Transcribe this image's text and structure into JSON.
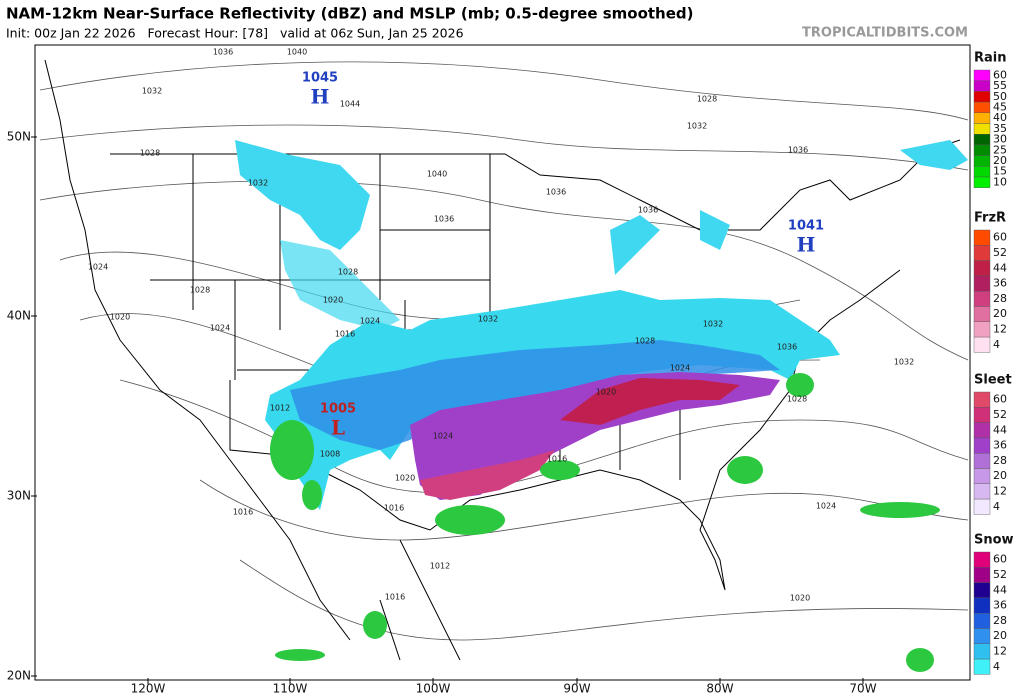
{
  "header": {
    "title": "NAM-12km Near-Surface Reflectivity (dBZ) and MSLP (mb; 0.5-degree smoothed)",
    "subtitle": "Init: 00z Jan 22 2026   Forecast Hour: [78]   valid at 06z Sun, Jan 25 2026",
    "watermark": "TROPICALTIDBITS.COM"
  },
  "map": {
    "lat_labels": [
      "50N",
      "40N",
      "30N",
      "20N"
    ],
    "lon_labels": [
      "120W",
      "110W",
      "100W",
      "90W",
      "80W",
      "70W"
    ],
    "pressure_centers": [
      {
        "value": "1045",
        "letter": "H"
      },
      {
        "value": "1041",
        "letter": "H"
      },
      {
        "value": "1005",
        "letter": "L"
      }
    ],
    "isobar_labels": [
      "1036",
      "1040",
      "1032",
      "1044",
      "1028",
      "1032",
      "1036",
      "1028",
      "1032",
      "1040",
      "1036",
      "1036",
      "1036",
      "1024",
      "1028",
      "1028",
      "1020",
      "1024",
      "1020",
      "1024",
      "1016",
      "1032",
      "1032",
      "1028",
      "1036",
      "1032",
      "1024",
      "1020",
      "1028",
      "1012",
      "1024",
      "1008",
      "1020",
      "1016",
      "1016",
      "1016",
      "1024",
      "1012",
      "1016",
      "1020"
    ]
  },
  "legend": [
    {
      "title": "Rain",
      "items": [
        {
          "label": 60,
          "color": "#ff00ff"
        },
        {
          "label": 55,
          "color": "#c800c8"
        },
        {
          "label": 50,
          "color": "#e00000"
        },
        {
          "label": 45,
          "color": "#ff5000"
        },
        {
          "label": 40,
          "color": "#ffb000"
        },
        {
          "label": 35,
          "color": "#f0e000"
        },
        {
          "label": 30,
          "color": "#006400"
        },
        {
          "label": 25,
          "color": "#008c00"
        },
        {
          "label": 20,
          "color": "#00b400"
        },
        {
          "label": 15,
          "color": "#00d800"
        },
        {
          "label": 10,
          "color": "#00f000"
        }
      ]
    },
    {
      "title": "FrzR",
      "items": [
        {
          "label": 60,
          "color": "#ff4a00"
        },
        {
          "label": 52,
          "color": "#e03a3a"
        },
        {
          "label": 44,
          "color": "#c02048"
        },
        {
          "label": 36,
          "color": "#b02060"
        },
        {
          "label": 28,
          "color": "#d04080"
        },
        {
          "label": 20,
          "color": "#e070a0"
        },
        {
          "label": 12,
          "color": "#f0a0c0"
        },
        {
          "label": 4,
          "color": "#ffe0f0"
        }
      ]
    },
    {
      "title": "Sleet",
      "items": [
        {
          "label": 60,
          "color": "#e04a68"
        },
        {
          "label": 52,
          "color": "#d03078"
        },
        {
          "label": 44,
          "color": "#b030a8"
        },
        {
          "label": 36,
          "color": "#a040c8"
        },
        {
          "label": 28,
          "color": "#b070d8"
        },
        {
          "label": 20,
          "color": "#c898e8"
        },
        {
          "label": 12,
          "color": "#d8b8f0"
        },
        {
          "label": 4,
          "color": "#f2e8ff"
        }
      ]
    },
    {
      "title": "Snow",
      "items": [
        {
          "label": 60,
          "color": "#e0007a"
        },
        {
          "label": 52,
          "color": "#a00088"
        },
        {
          "label": 44,
          "color": "#200090"
        },
        {
          "label": 36,
          "color": "#1030c0"
        },
        {
          "label": 28,
          "color": "#2060e0"
        },
        {
          "label": 20,
          "color": "#3090f0"
        },
        {
          "label": 12,
          "color": "#30c0f0"
        },
        {
          "label": 4,
          "color": "#40f0f8"
        }
      ]
    }
  ]
}
